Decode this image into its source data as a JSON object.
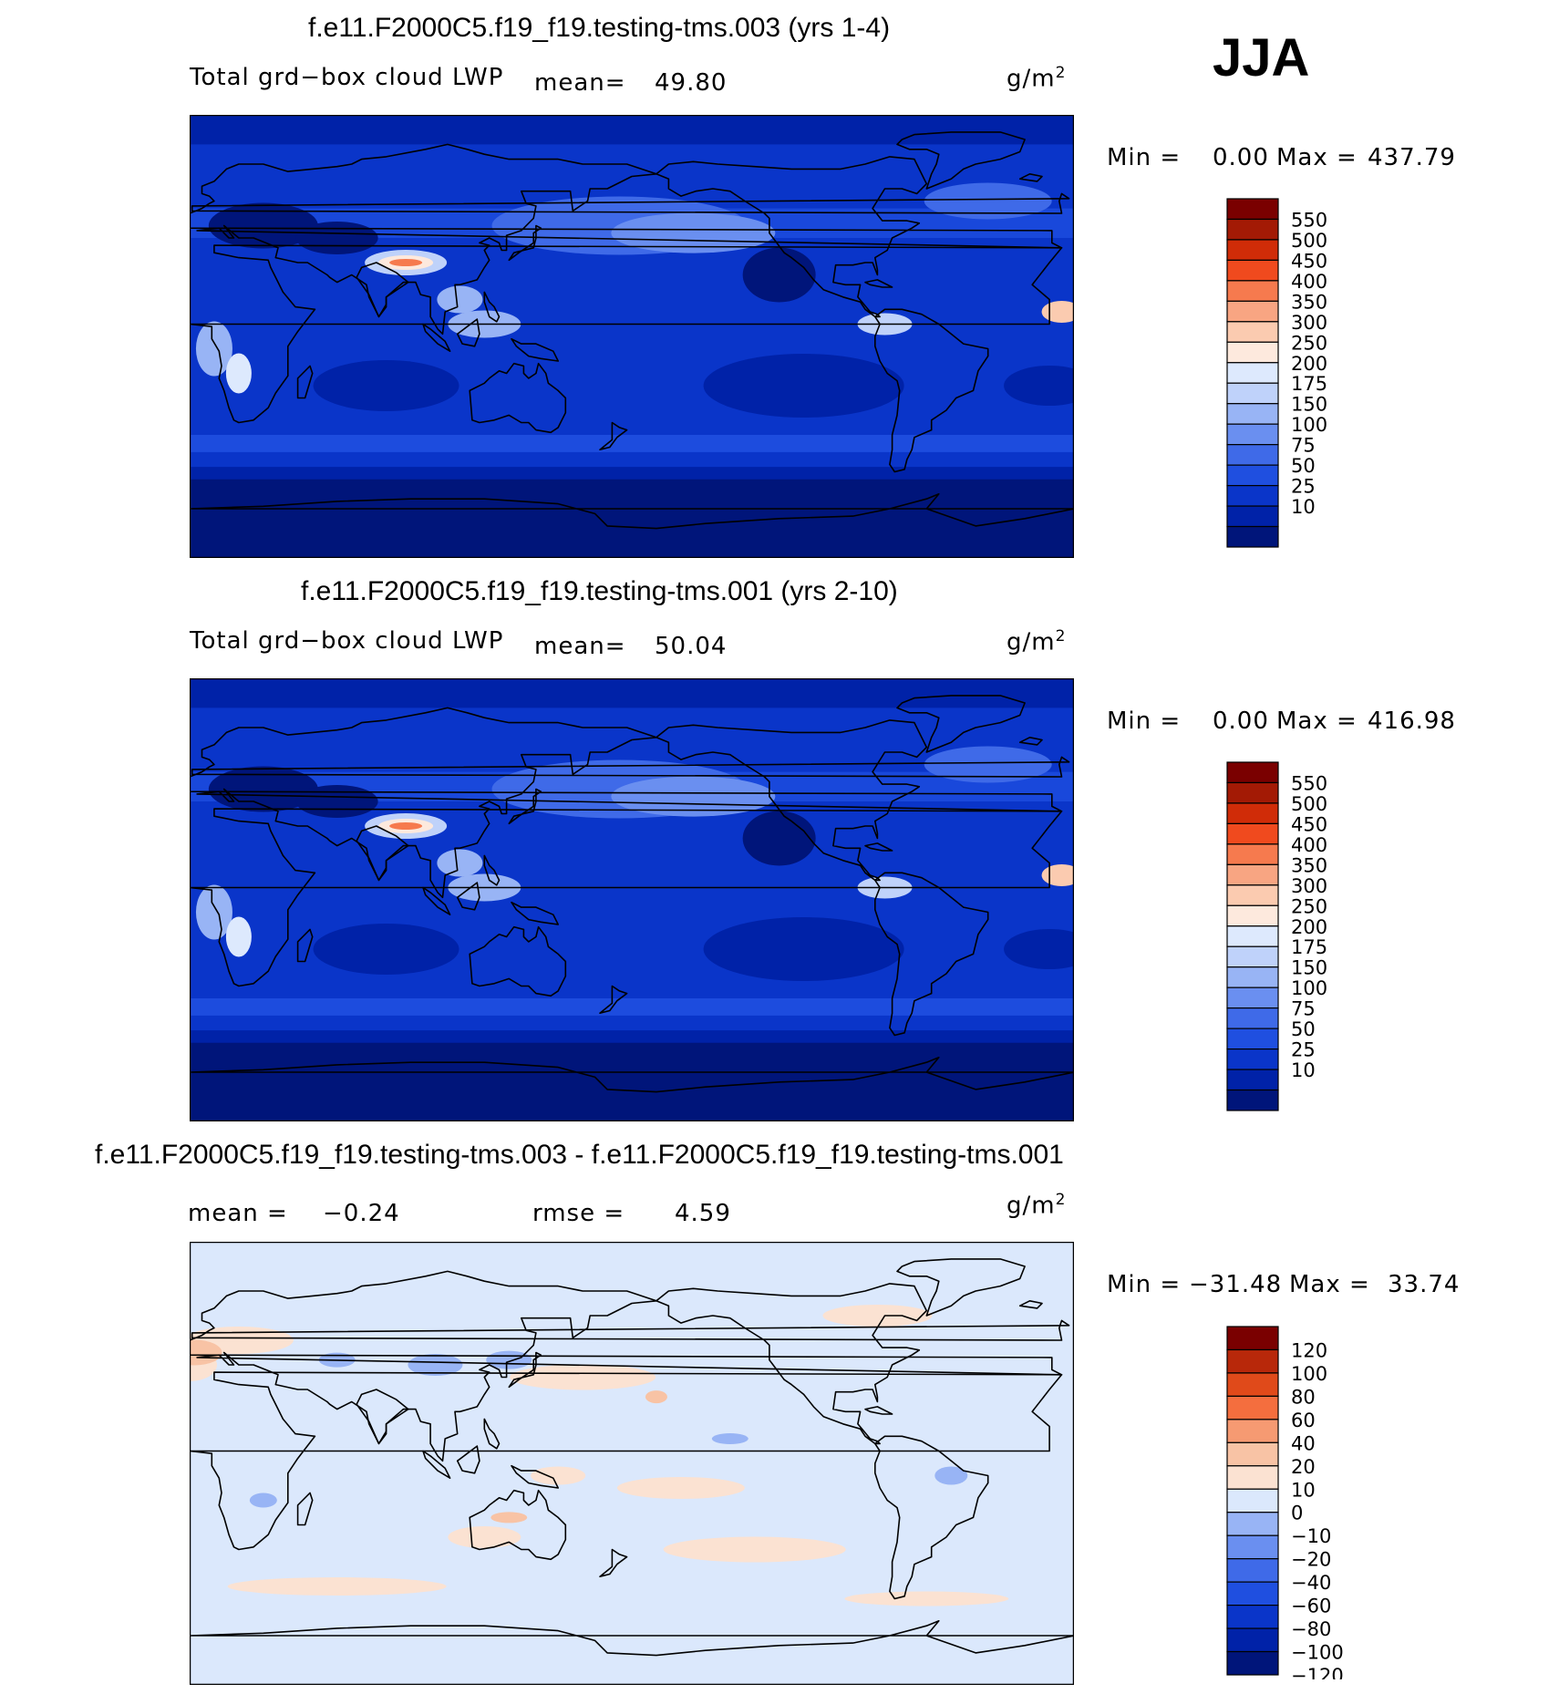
{
  "season": "JJA",
  "colors": {
    "abs_scale": [
      "#00157a",
      "#0022a8",
      "#0a35c9",
      "#1f4fe0",
      "#3f6ae8",
      "#6a8ff0",
      "#98b4f5",
      "#bfd2fa",
      "#dde9fd",
      "#fde9dd",
      "#fbcbb0",
      "#f8a582",
      "#f67a4e",
      "#f04a1e",
      "#d02c08",
      "#a31a05",
      "#7a0000"
    ],
    "diff_scale": [
      "#00157a",
      "#0022a8",
      "#0a35c9",
      "#1f4fe0",
      "#3f6ae8",
      "#6a8ff0",
      "#98b4f5",
      "#dbe8fc",
      "#fbe2d2",
      "#f8c3a5",
      "#f69a72",
      "#f46e3e",
      "#e04a1a",
      "#b8280a",
      "#7a0000"
    ]
  },
  "panels": [
    {
      "title": "f.e11.F2000C5.f19_f19.testing-tms.003 (yrs 1-4)",
      "variable": "Total grd−box cloud LWP",
      "mean_label": "mean=",
      "mean_value": "49.80",
      "units": "g/m",
      "units_sup": "2",
      "min_label": "Min =",
      "min_value": "0.00",
      "max_label": "Max =",
      "max_value": "437.79",
      "colorbar_labels": [
        "550",
        "500",
        "450",
        "400",
        "350",
        "300",
        "250",
        "200",
        "175",
        "150",
        "100",
        "75",
        "50",
        "25",
        "10"
      ],
      "field": "abs"
    },
    {
      "title": "f.e11.F2000C5.f19_f19.testing-tms.001 (yrs 2-10)",
      "variable": "Total grd−box cloud LWP",
      "mean_label": "mean=",
      "mean_value": "50.04",
      "units": "g/m",
      "units_sup": "2",
      "min_label": "Min =",
      "min_value": "0.00",
      "max_label": "Max =",
      "max_value": "416.98",
      "colorbar_labels": [
        "550",
        "500",
        "450",
        "400",
        "350",
        "300",
        "250",
        "200",
        "175",
        "150",
        "100",
        "75",
        "50",
        "25",
        "10"
      ],
      "field": "abs"
    },
    {
      "title": "f.e11.F2000C5.f19_f19.testing-tms.003 - f.e11.F2000C5.f19_f19.testing-tms.001",
      "mean_label": "mean =",
      "mean_value": "−0.24",
      "rmse_label": "rmse =",
      "rmse_value": "4.59",
      "units": "g/m",
      "units_sup": "2",
      "min_label": "Min =",
      "min_value": "−31.48",
      "max_label": "Max =",
      "max_value": "33.74",
      "colorbar_labels": [
        "120",
        "100",
        "80",
        "60",
        "40",
        "20",
        "10",
        "0",
        "−10",
        "−20",
        "−40",
        "−60",
        "−80",
        "−100",
        "−120"
      ],
      "field": "diff"
    }
  ]
}
